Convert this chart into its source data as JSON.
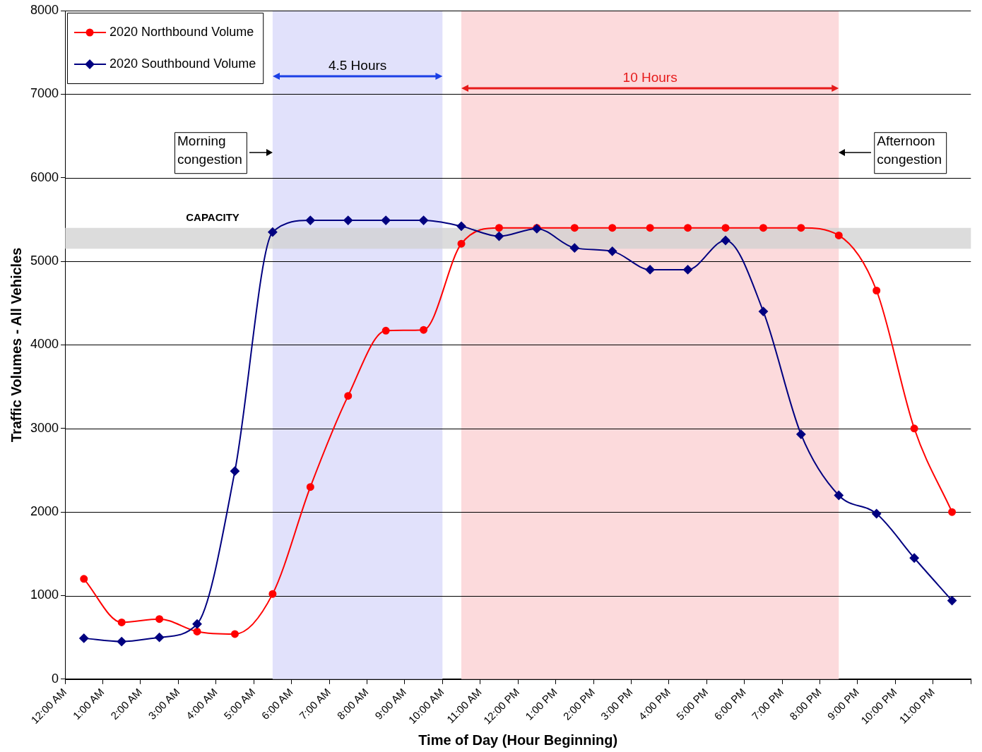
{
  "chart_data": {
    "type": "line",
    "xlabel": "Time of Day (Hour Beginning)",
    "ylabel": "Traffic Volumes - All Vehicles",
    "xlim": [
      0,
      24
    ],
    "xticks": [
      {
        "value": 0,
        "label": "12:00 AM"
      },
      {
        "value": 1,
        "label": "1:00 AM"
      },
      {
        "value": 2,
        "label": "2:00 AM"
      },
      {
        "value": 3,
        "label": "3:00 AM"
      },
      {
        "value": 4,
        "label": "4:00 AM"
      },
      {
        "value": 5,
        "label": "5:00 AM"
      },
      {
        "value": 6,
        "label": "6:00 AM"
      },
      {
        "value": 7,
        "label": "7:00 AM"
      },
      {
        "value": 8,
        "label": "8:00 AM"
      },
      {
        "value": 9,
        "label": "9:00 AM"
      },
      {
        "value": 10,
        "label": "10:00 AM"
      },
      {
        "value": 11,
        "label": "11:00 AM"
      },
      {
        "value": 12,
        "label": "12:00 PM"
      },
      {
        "value": 13,
        "label": "1:00 PM"
      },
      {
        "value": 14,
        "label": "2:00 PM"
      },
      {
        "value": 15,
        "label": "3:00 PM"
      },
      {
        "value": 16,
        "label": "4:00 PM"
      },
      {
        "value": 17,
        "label": "5:00 PM"
      },
      {
        "value": 18,
        "label": "6:00 PM"
      },
      {
        "value": 19,
        "label": "7:00 PM"
      },
      {
        "value": 20,
        "label": "8:00 PM"
      },
      {
        "value": 21,
        "label": "9:00 PM"
      },
      {
        "value": 22,
        "label": "10:00 PM"
      },
      {
        "value": 23,
        "label": "11:00 PM"
      },
      {
        "value": 24,
        "label": null
      }
    ],
    "ylim": [
      0,
      8000
    ],
    "yticks": [
      0,
      1000,
      2000,
      3000,
      4000,
      5000,
      6000,
      7000,
      8000
    ],
    "x": [
      0.5,
      1.5,
      2.5,
      3.5,
      4.5,
      5.5,
      6.5,
      7.5,
      8.5,
      9.5,
      10.5,
      11.5,
      12.5,
      13.5,
      14.5,
      15.5,
      16.5,
      17.5,
      18.5,
      19.5,
      20.5,
      21.5,
      22.5,
      23.5
    ],
    "series": [
      {
        "name": "2020 Northbound Volume",
        "color": "#ff0000",
        "marker": "circle",
        "values": [
          1200,
          680,
          720,
          570,
          540,
          1020,
          2300,
          3390,
          4170,
          4180,
          5210,
          5400,
          5400,
          5400,
          5400,
          5400,
          5400,
          5400,
          5400,
          5400,
          5310,
          4650,
          3000,
          2000
        ]
      },
      {
        "name": "2020 Southbound Volume",
        "color": "#000080",
        "marker": "diamond",
        "values": [
          490,
          450,
          500,
          660,
          2490,
          5350,
          5490,
          5490,
          5490,
          5490,
          5420,
          5300,
          5390,
          5160,
          5120,
          4900,
          4900,
          5250,
          4400,
          2930,
          2200,
          1980,
          1450,
          940
        ]
      }
    ],
    "bands": [
      {
        "axis": "x",
        "from": 5.5,
        "to": 10,
        "label": "4.5 Hours",
        "color": "#e1e1fb"
      },
      {
        "axis": "x",
        "from": 10.5,
        "to": 20.5,
        "label": "10 Hours",
        "color": "#fcdadc"
      },
      {
        "axis": "y",
        "from": 5150,
        "to": 5400,
        "label": "CAPACITY",
        "color": "#d0d0d0"
      }
    ],
    "annotations": [
      {
        "text": "Morning\ncongestion",
        "x": 5.5,
        "y": 6300
      },
      {
        "text": "Afternoon\ncongestion",
        "x": 20.5,
        "y": 6300
      }
    ],
    "grid": "y",
    "legend": "top left",
    "line_style": "solid"
  }
}
